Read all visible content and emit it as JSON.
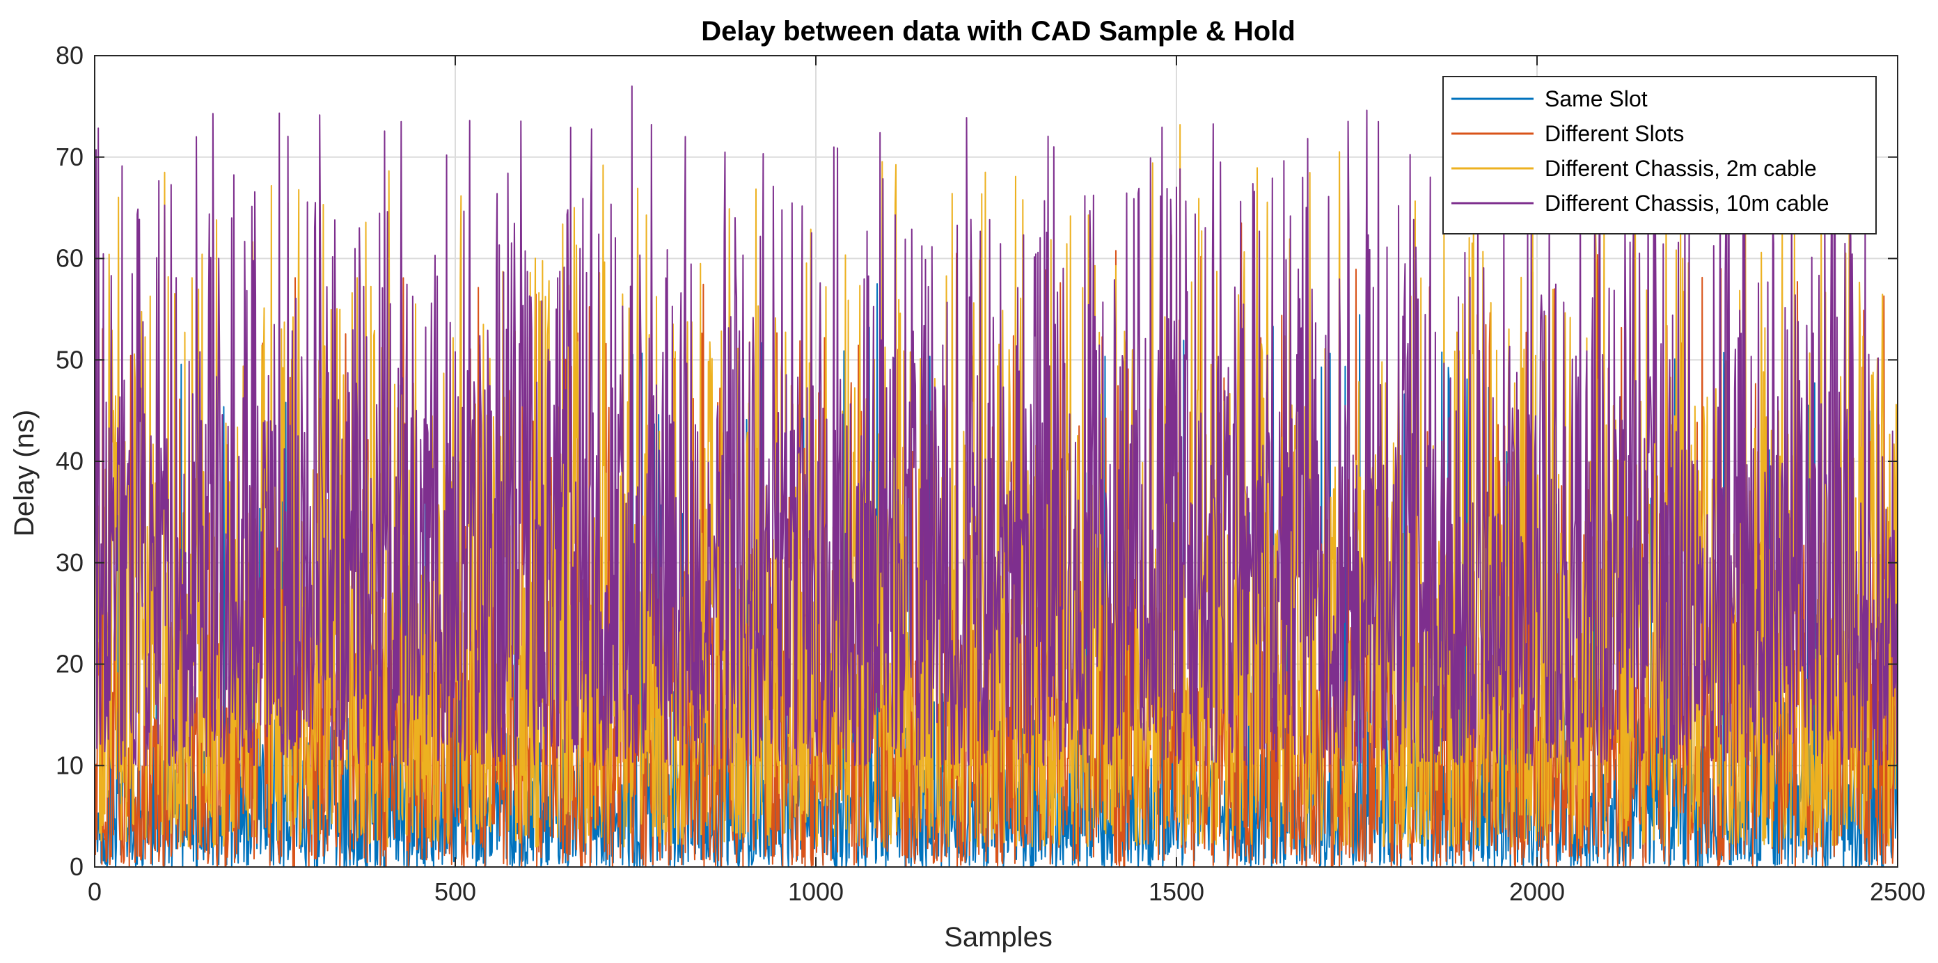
{
  "chart_data": {
    "type": "line",
    "title": "Delay between data with CAD Sample & Hold",
    "xlabel": "Samples",
    "ylabel": "Delay (ns)",
    "xlim": [
      0,
      2500
    ],
    "ylim": [
      0,
      80
    ],
    "xticks": [
      0,
      500,
      1000,
      1500,
      2000,
      2500
    ],
    "yticks": [
      0,
      10,
      20,
      30,
      40,
      50,
      60,
      70,
      80
    ],
    "xtick_labels": [
      "0",
      "500",
      "1000",
      "1500",
      "2000",
      "2500"
    ],
    "ytick_labels": [
      "0",
      "10",
      "20",
      "30",
      "40",
      "50",
      "60",
      "70",
      "80"
    ],
    "grid": true,
    "legend_position": "top-right",
    "n_samples": 2500,
    "series": [
      {
        "name": "Same Slot",
        "color": "#0072BD",
        "typical_range": [
          0,
          15
        ],
        "mean": 5,
        "max_peak": 57.5,
        "notable_peaks": [
          {
            "x": 1085,
            "y": 57.5
          }
        ]
      },
      {
        "name": "Different Slots",
        "color": "#D95319",
        "typical_range": [
          0,
          30
        ],
        "mean": 10,
        "max_peak": 63.5,
        "notable_peaks": [
          {
            "x": 1195,
            "y": 60.5
          },
          {
            "x": 1590,
            "y": 63.5
          },
          {
            "x": 2255,
            "y": 59
          }
        ]
      },
      {
        "name": "Different Chassis, 2m cable",
        "color": "#EDB120",
        "typical_range": [
          2,
          50
        ],
        "mean": 20,
        "max_peak": 73.2,
        "notable_peaks": [
          {
            "x": 705,
            "y": 69.2
          },
          {
            "x": 1235,
            "y": 68.5
          },
          {
            "x": 1505,
            "y": 73.2
          },
          {
            "x": 2340,
            "y": 64
          }
        ]
      },
      {
        "name": "Different Chassis, 10m cable",
        "color": "#7E2F8E",
        "typical_range": [
          10,
          55
        ],
        "mean": 30,
        "max_peak": 77,
        "notable_peaks": [
          {
            "x": 190,
            "y": 64
          },
          {
            "x": 425,
            "y": 73.5
          },
          {
            "x": 520,
            "y": 73.6
          },
          {
            "x": 745,
            "y": 77
          },
          {
            "x": 1330,
            "y": 71
          },
          {
            "x": 1675,
            "y": 68
          },
          {
            "x": 1780,
            "y": 73.5
          },
          {
            "x": 2455,
            "y": 66
          }
        ]
      }
    ]
  }
}
